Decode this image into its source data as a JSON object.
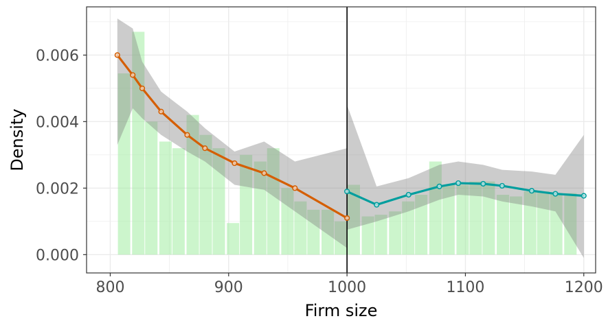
{
  "chart_data": {
    "type": "bar+line",
    "xlabel": "Firm size",
    "ylabel": "Density",
    "xlim": [
      780,
      1210
    ],
    "ylim": [
      -0.00055,
      0.00745
    ],
    "x_ticks": [
      800,
      900,
      1000,
      1100,
      1200
    ],
    "x_tick_labels": [
      "800",
      "900",
      "1000",
      "1100",
      "1200"
    ],
    "y_ticks": [
      0,
      0.002,
      0.004,
      0.006
    ],
    "y_tick_labels": [
      "0.000",
      "0.002",
      "0.004",
      "0.006"
    ],
    "grid": true,
    "cutoff": 1000,
    "colors": {
      "bars": "#9AEB9A",
      "band": "#7F7F7F",
      "left_line": "#D55E00",
      "right_line": "#009E9E",
      "cutoff_line": "#000000",
      "grid": "#EBEBEB",
      "panel_border": "#333333"
    },
    "histogram": {
      "bin_width": 11.4,
      "bins": [
        {
          "start": 806,
          "density": 0.00545
        },
        {
          "start": 818,
          "density": 0.0067
        },
        {
          "start": 829,
          "density": 0.004
        },
        {
          "start": 841,
          "density": 0.0034
        },
        {
          "start": 852,
          "density": 0.0032
        },
        {
          "start": 864,
          "density": 0.0042
        },
        {
          "start": 875,
          "density": 0.0036
        },
        {
          "start": 886,
          "density": 0.0032
        },
        {
          "start": 898,
          "density": 0.00095
        },
        {
          "start": 909,
          "density": 0.003
        },
        {
          "start": 921,
          "density": 0.0028
        },
        {
          "start": 932,
          "density": 0.0032
        },
        {
          "start": 944,
          "density": 0.002
        },
        {
          "start": 955,
          "density": 0.0016
        },
        {
          "start": 966,
          "density": 0.00135
        },
        {
          "start": 978,
          "density": 0.00135
        },
        {
          "start": 989,
          "density": 0.001
        },
        {
          "start": 1000,
          "density": 0.0021
        },
        {
          "start": 1012,
          "density": 0.00115
        },
        {
          "start": 1023,
          "density": 0.0012
        },
        {
          "start": 1035,
          "density": 0.0013
        },
        {
          "start": 1046,
          "density": 0.0016
        },
        {
          "start": 1057,
          "density": 0.0018
        },
        {
          "start": 1069,
          "density": 0.0028
        },
        {
          "start": 1080,
          "density": 0.0021
        },
        {
          "start": 1092,
          "density": 0.0021
        },
        {
          "start": 1103,
          "density": 0.0022
        },
        {
          "start": 1114,
          "density": 0.0022
        },
        {
          "start": 1126,
          "density": 0.0018
        },
        {
          "start": 1137,
          "density": 0.00175
        },
        {
          "start": 1149,
          "density": 0.0019
        },
        {
          "start": 1160,
          "density": 0.0019
        },
        {
          "start": 1171,
          "density": 0.00185
        },
        {
          "start": 1183,
          "density": 0.00185
        }
      ]
    },
    "series": [
      {
        "side": "left",
        "x": [
          806,
          819,
          827,
          843,
          865,
          880,
          905,
          930,
          956,
          1000
        ],
        "y": [
          0.006,
          0.0054,
          0.005,
          0.0043,
          0.0036,
          0.0032,
          0.00275,
          0.00245,
          0.002,
          0.0011
        ],
        "ci_lower": [
          0.0033,
          0.0044,
          0.0041,
          0.0036,
          0.0031,
          0.0028,
          0.0021,
          0.00195,
          0.0013,
          0.0002
        ],
        "ci_upper": [
          0.0071,
          0.0068,
          0.0058,
          0.0049,
          0.0043,
          0.0038,
          0.0031,
          0.0034,
          0.0028,
          0.0032
        ]
      },
      {
        "side": "right",
        "x": [
          1000,
          1025,
          1052,
          1078,
          1094,
          1115,
          1131,
          1156,
          1176,
          1200
        ],
        "y": [
          0.0019,
          0.0015,
          0.0018,
          0.00205,
          0.00215,
          0.00213,
          0.00207,
          0.00192,
          0.00183,
          0.00177
        ],
        "ci_lower": [
          0.00075,
          0.001,
          0.0013,
          0.00165,
          0.0018,
          0.00175,
          0.0016,
          0.00145,
          0.0013,
          -0.0001
        ],
        "ci_upper": [
          0.0045,
          0.00205,
          0.0023,
          0.0027,
          0.0028,
          0.0027,
          0.00255,
          0.0025,
          0.0024,
          0.0036
        ]
      }
    ]
  }
}
